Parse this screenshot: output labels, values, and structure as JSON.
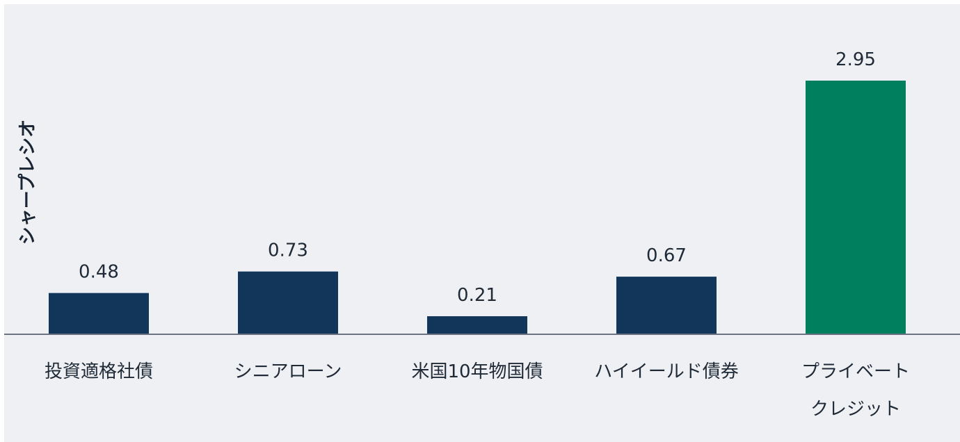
{
  "chart_data": {
    "type": "bar",
    "ylabel": "シャープレシオ",
    "categories": [
      [
        "投資適格社債"
      ],
      [
        "シニアローン"
      ],
      [
        "米国10年物国債"
      ],
      [
        "ハイイールド債券"
      ],
      [
        "プライベート",
        "クレジット"
      ]
    ],
    "values": [
      0.48,
      0.73,
      0.21,
      0.67,
      2.95
    ],
    "value_labels": [
      "0.48",
      "0.73",
      "0.21",
      "0.67",
      "2.95"
    ],
    "colors": [
      "#12365a",
      "#12365a",
      "#12365a",
      "#12365a",
      "#007f5f"
    ],
    "ylim": [
      0,
      2.95
    ],
    "grid": false,
    "legend": "none"
  }
}
